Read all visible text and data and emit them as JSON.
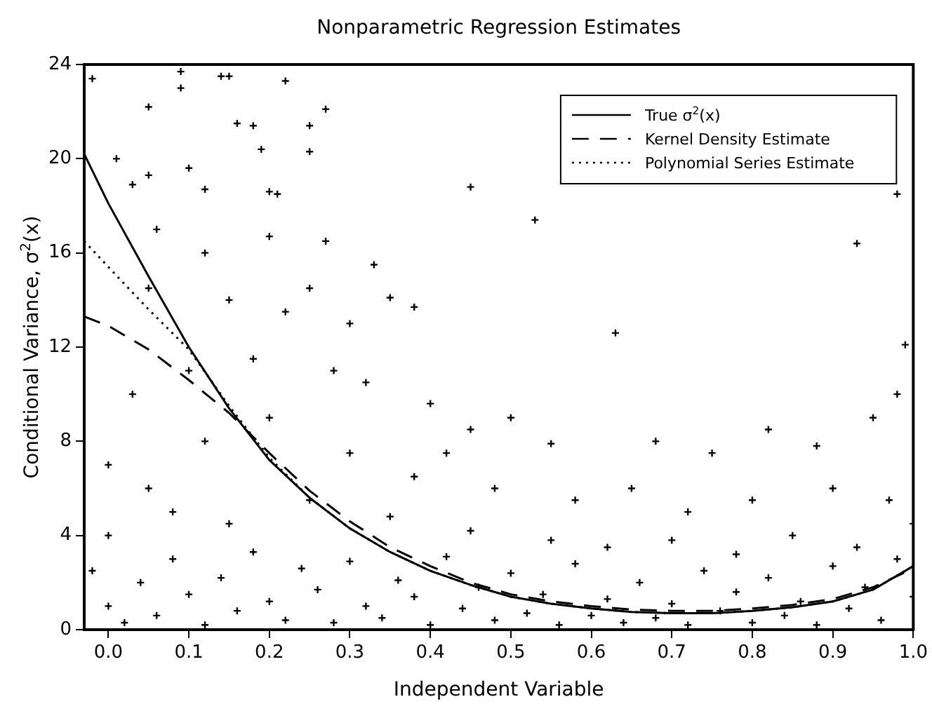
{
  "chart_data": {
    "type": "scatter",
    "title": "Nonparametric Regression Estimates",
    "xlabel": "Independent Variable",
    "ylabel": "Conditional Variance, σ$^{2}$(x)",
    "xlim": [
      -0.03,
      1.0
    ],
    "xticks": [
      {
        "value": 0,
        "label": "0.0"
      },
      {
        "value": 0.1,
        "label": "0.1"
      },
      {
        "value": 0.2,
        "label": "0.2"
      },
      {
        "value": 0.3,
        "label": "0.3"
      },
      {
        "value": 0.4,
        "label": "0.4"
      },
      {
        "value": 0.5,
        "label": "0.5"
      },
      {
        "value": 0.6,
        "label": "0.6"
      },
      {
        "value": 0.7,
        "label": "0.7"
      },
      {
        "value": 0.8,
        "label": "0.8"
      },
      {
        "value": 0.9,
        "label": "0.9"
      },
      {
        "value": 1,
        "label": "1.0"
      }
    ],
    "ylim": [
      0,
      24
    ],
    "yticks": [
      0,
      4,
      8,
      12,
      16,
      20,
      24
    ],
    "grid": false,
    "legend": "top right",
    "series": [
      {
        "marker": "cross",
        "color": "#000000",
        "x": [
          -0.02,
          0.01,
          0.03,
          0.05,
          0.05,
          0.09,
          0.09,
          0.1,
          0.12,
          0.14,
          0.15,
          0.16,
          0.18,
          0.19,
          0.2,
          0.21,
          0.22,
          0.25,
          0.25,
          0.27,
          0.06,
          0.12,
          0.2,
          0.27,
          0.33,
          0.45,
          0.53,
          0.63,
          0.93,
          0.98,
          0.99,
          0.98,
          0.35,
          0.38,
          0.3,
          0.22,
          0.25,
          0.15,
          0.05,
          0.1,
          0.03,
          0.18,
          0.28,
          0.32,
          0.4,
          0.45,
          0.5,
          0.42,
          0.55,
          0.68,
          0.75,
          0.82,
          0.88,
          0.95,
          0.0,
          0.05,
          0.12,
          0.2,
          0.3,
          0.38,
          0.48,
          0.58,
          0.65,
          0.72,
          0.8,
          0.9,
          0.97,
          0.0,
          0.08,
          0.15,
          0.25,
          0.35,
          0.45,
          0.55,
          0.62,
          0.7,
          0.78,
          0.85,
          0.93,
          1.0,
          -0.02,
          0.0,
          0.02,
          0.04,
          0.06,
          0.08,
          0.1,
          0.12,
          0.14,
          0.16,
          0.18,
          0.2,
          0.22,
          0.24,
          0.26,
          0.28,
          0.3,
          0.32,
          0.34,
          0.36,
          0.38,
          0.4,
          0.42,
          0.44,
          0.46,
          0.48,
          0.5,
          0.52,
          0.54,
          0.56,
          0.58,
          0.6,
          0.62,
          0.64,
          0.66,
          0.68,
          0.7,
          0.72,
          0.74,
          0.76,
          0.78,
          0.8,
          0.82,
          0.84,
          0.86,
          0.88,
          0.9,
          0.92,
          0.94,
          0.96,
          0.98,
          1.0
        ],
        "values": [
          23.4,
          20,
          18.9,
          22.2,
          19.3,
          23.7,
          23,
          19.6,
          18.7,
          23.5,
          23.5,
          21.5,
          21.4,
          20.4,
          18.6,
          18.5,
          23.3,
          21.4,
          20.3,
          22.1,
          17,
          16,
          16.7,
          16.5,
          15.5,
          18.8,
          17.4,
          12.6,
          16.4,
          18.5,
          12.1,
          10,
          14.1,
          13.7,
          13,
          13.5,
          14.5,
          14,
          14.5,
          11,
          10,
          11.5,
          11,
          10.5,
          9.6,
          8.5,
          9,
          7.5,
          7.9,
          8,
          7.5,
          8.5,
          7.8,
          9,
          7,
          6,
          8,
          9,
          7.5,
          6.5,
          6,
          5.5,
          6,
          5,
          5.5,
          6,
          5.5,
          4,
          5,
          4.5,
          5.5,
          4.8,
          4.2,
          3.8,
          3.5,
          3.8,
          3.2,
          4,
          3.5,
          4.5,
          2.5,
          1,
          0.3,
          2,
          0.6,
          3,
          1.5,
          0.2,
          2.2,
          0.8,
          3.3,
          1.2,
          0.4,
          2.6,
          1.7,
          0.3,
          2.9,
          1,
          0.5,
          2.1,
          1.4,
          0.2,
          3.1,
          0.9,
          1.8,
          0.4,
          2.4,
          0.7,
          1.5,
          0.2,
          2.8,
          0.6,
          1.3,
          0.3,
          2,
          0.5,
          1.1,
          0.2,
          2.5,
          0.8,
          1.6,
          0.3,
          2.2,
          0.6,
          1.2,
          0.2,
          2.7,
          0.9,
          1.8,
          0.4,
          3,
          1.4
        ]
      },
      {
        "type": "line",
        "name": "True σ$^{2}$(x)",
        "color": "#000000",
        "line_style": "solid",
        "marker": "none",
        "x": [
          -0.03,
          0.0,
          0.05,
          0.1,
          0.15,
          0.2,
          0.25,
          0.3,
          0.35,
          0.4,
          0.45,
          0.5,
          0.55,
          0.6,
          0.65,
          0.7,
          0.75,
          0.8,
          0.85,
          0.9,
          0.95,
          1.0
        ],
        "values": [
          20.2,
          18.1,
          15,
          12,
          9.4,
          7.2,
          5.6,
          4.3,
          3.3,
          2.5,
          1.9,
          1.4,
          1.1,
          0.9,
          0.75,
          0.7,
          0.7,
          0.8,
          0.95,
          1.2,
          1.7,
          2.7
        ]
      },
      {
        "type": "line",
        "name": "Kernel Density Estimate",
        "color": "#000000",
        "line_style": "dashed",
        "marker": "none",
        "x": [
          -0.03,
          0.0,
          0.05,
          0.1,
          0.15,
          0.2,
          0.25,
          0.3,
          0.35,
          0.4,
          0.45,
          0.5,
          0.55,
          0.6,
          0.65,
          0.7,
          0.75,
          0.8,
          0.85,
          0.9,
          0.95,
          1.0
        ],
        "values": [
          13.3,
          12.9,
          11.9,
          10.6,
          9.2,
          7.5,
          5.9,
          4.6,
          3.5,
          2.7,
          2,
          1.5,
          1.2,
          1,
          0.85,
          0.8,
          0.8,
          0.9,
          1.05,
          1.3,
          1.8,
          2.6
        ]
      },
      {
        "type": "line",
        "name": "Polynomial Series Estimate",
        "color": "#000000",
        "line_style": "dotted",
        "marker": "none",
        "x": [
          -0.03,
          0.0,
          0.05,
          0.1,
          0.15,
          0.2,
          0.25,
          0.3,
          0.35,
          0.4,
          0.45,
          0.5,
          0.55,
          0.6,
          0.65,
          0.7,
          0.75,
          0.8,
          0.85,
          0.9,
          0.95,
          1.0
        ],
        "values": [
          16.5,
          15.4,
          13.6,
          11.9,
          9.5,
          7.3,
          5.6,
          4.3,
          3.3,
          2.5,
          1.9,
          1.4,
          1.1,
          0.9,
          0.75,
          0.7,
          0.7,
          0.8,
          0.95,
          1.2,
          1.7,
          2.7
        ]
      }
    ]
  }
}
